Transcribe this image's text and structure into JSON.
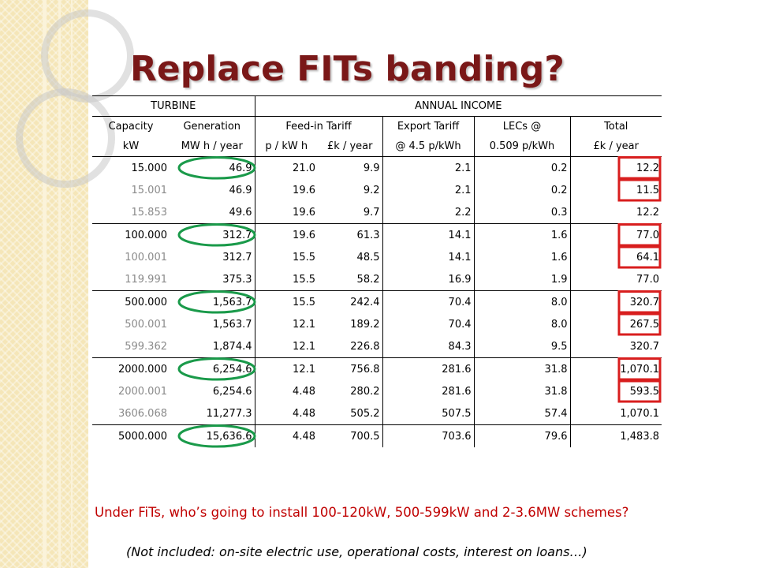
{
  "slide": {
    "title": "Replace FITs banding?",
    "header": {
      "turbine": "TURBINE",
      "annual_income": "ANNUAL INCOME",
      "capacity": "Capacity",
      "generation": "Generation",
      "feed_in_tariff": "Feed-in Tariff",
      "export_tariff": "Export Tariff",
      "lecs": "LECs @",
      "total": "Total",
      "unit_kw": "kW",
      "unit_mwh": "MW h / year",
      "unit_pkwh": "p / kW h",
      "unit_gbp_fit": "£k / year",
      "unit_export": "@ 4.5 p/kWh",
      "unit_lec": "0.509 p/kWh",
      "unit_gbp_total": "£k / year"
    },
    "rows": [
      {
        "capacity": "15.000",
        "generation": "46.9",
        "tariff": "21.0",
        "fit": "9.9",
        "export": "2.1",
        "lec": "0.2",
        "total": "12.2",
        "capacity_style": "black",
        "gen_circled": true,
        "total_boxed": true
      },
      {
        "capacity": "15.001",
        "generation": "46.9",
        "tariff": "19.6",
        "fit": "9.2",
        "export": "2.1",
        "lec": "0.2",
        "total": "11.5",
        "capacity_style": "grey",
        "gen_circled": false,
        "total_boxed": true
      },
      {
        "capacity": "15.853",
        "generation": "49.6",
        "tariff": "19.6",
        "fit": "9.7",
        "export": "2.2",
        "lec": "0.3",
        "total": "12.2",
        "capacity_style": "grey",
        "gen_circled": false,
        "total_boxed": false
      },
      {
        "capacity": "100.000",
        "generation": "312.7",
        "tariff": "19.6",
        "fit": "61.3",
        "export": "14.1",
        "lec": "1.6",
        "total": "77.0",
        "capacity_style": "black",
        "gen_circled": true,
        "total_boxed": true
      },
      {
        "capacity": "100.001",
        "generation": "312.7",
        "tariff": "15.5",
        "fit": "48.5",
        "export": "14.1",
        "lec": "1.6",
        "total": "64.1",
        "capacity_style": "grey",
        "gen_circled": false,
        "total_boxed": true
      },
      {
        "capacity": "119.991",
        "generation": "375.3",
        "tariff": "15.5",
        "fit": "58.2",
        "export": "16.9",
        "lec": "1.9",
        "total": "77.0",
        "capacity_style": "grey",
        "gen_circled": false,
        "total_boxed": false
      },
      {
        "capacity": "500.000",
        "generation": "1,563.7",
        "tariff": "15.5",
        "fit": "242.4",
        "export": "70.4",
        "lec": "8.0",
        "total": "320.7",
        "capacity_style": "black",
        "gen_circled": true,
        "total_boxed": true
      },
      {
        "capacity": "500.001",
        "generation": "1,563.7",
        "tariff": "12.1",
        "fit": "189.2",
        "export": "70.4",
        "lec": "8.0",
        "total": "267.5",
        "capacity_style": "grey",
        "gen_circled": false,
        "total_boxed": true
      },
      {
        "capacity": "599.362",
        "generation": "1,874.4",
        "tariff": "12.1",
        "fit": "226.8",
        "export": "84.3",
        "lec": "9.5",
        "total": "320.7",
        "capacity_style": "grey",
        "gen_circled": false,
        "total_boxed": false
      },
      {
        "capacity": "2000.000",
        "generation": "6,254.6",
        "tariff": "12.1",
        "fit": "756.8",
        "export": "281.6",
        "lec": "31.8",
        "total": "1,070.1",
        "capacity_style": "black",
        "gen_circled": true,
        "total_boxed": true
      },
      {
        "capacity": "2000.001",
        "generation": "6,254.6",
        "tariff": "4.48",
        "fit": "280.2",
        "export": "281.6",
        "lec": "31.8",
        "total": "593.5",
        "capacity_style": "grey",
        "gen_circled": false,
        "total_boxed": true
      },
      {
        "capacity": "3606.068",
        "generation": "11,277.3",
        "tariff": "4.48",
        "fit": "505.2",
        "export": "507.5",
        "lec": "57.4",
        "total": "1,070.1",
        "capacity_style": "grey",
        "gen_circled": false,
        "total_boxed": false
      },
      {
        "capacity": "5000.000",
        "generation": "15,636.6",
        "tariff": "4.48",
        "fit": "700.5",
        "export": "703.6",
        "lec": "79.6",
        "total": "1,483.8",
        "capacity_style": "black",
        "gen_circled": true,
        "total_boxed": false
      }
    ],
    "question": "Under FiTs, who’s going to install 100-120kW, 500-599kW and 2-3.6MW schemes?",
    "footnote": "(Not included: on-site electric use, operational costs, interest on loans…)",
    "colors": {
      "title": "#7a1818",
      "grey_capacity": "#8a8a8a",
      "circle": "#1a9a4a",
      "box": "#d81e1e",
      "question": "#c00000",
      "band": "#f5e6b8"
    }
  }
}
